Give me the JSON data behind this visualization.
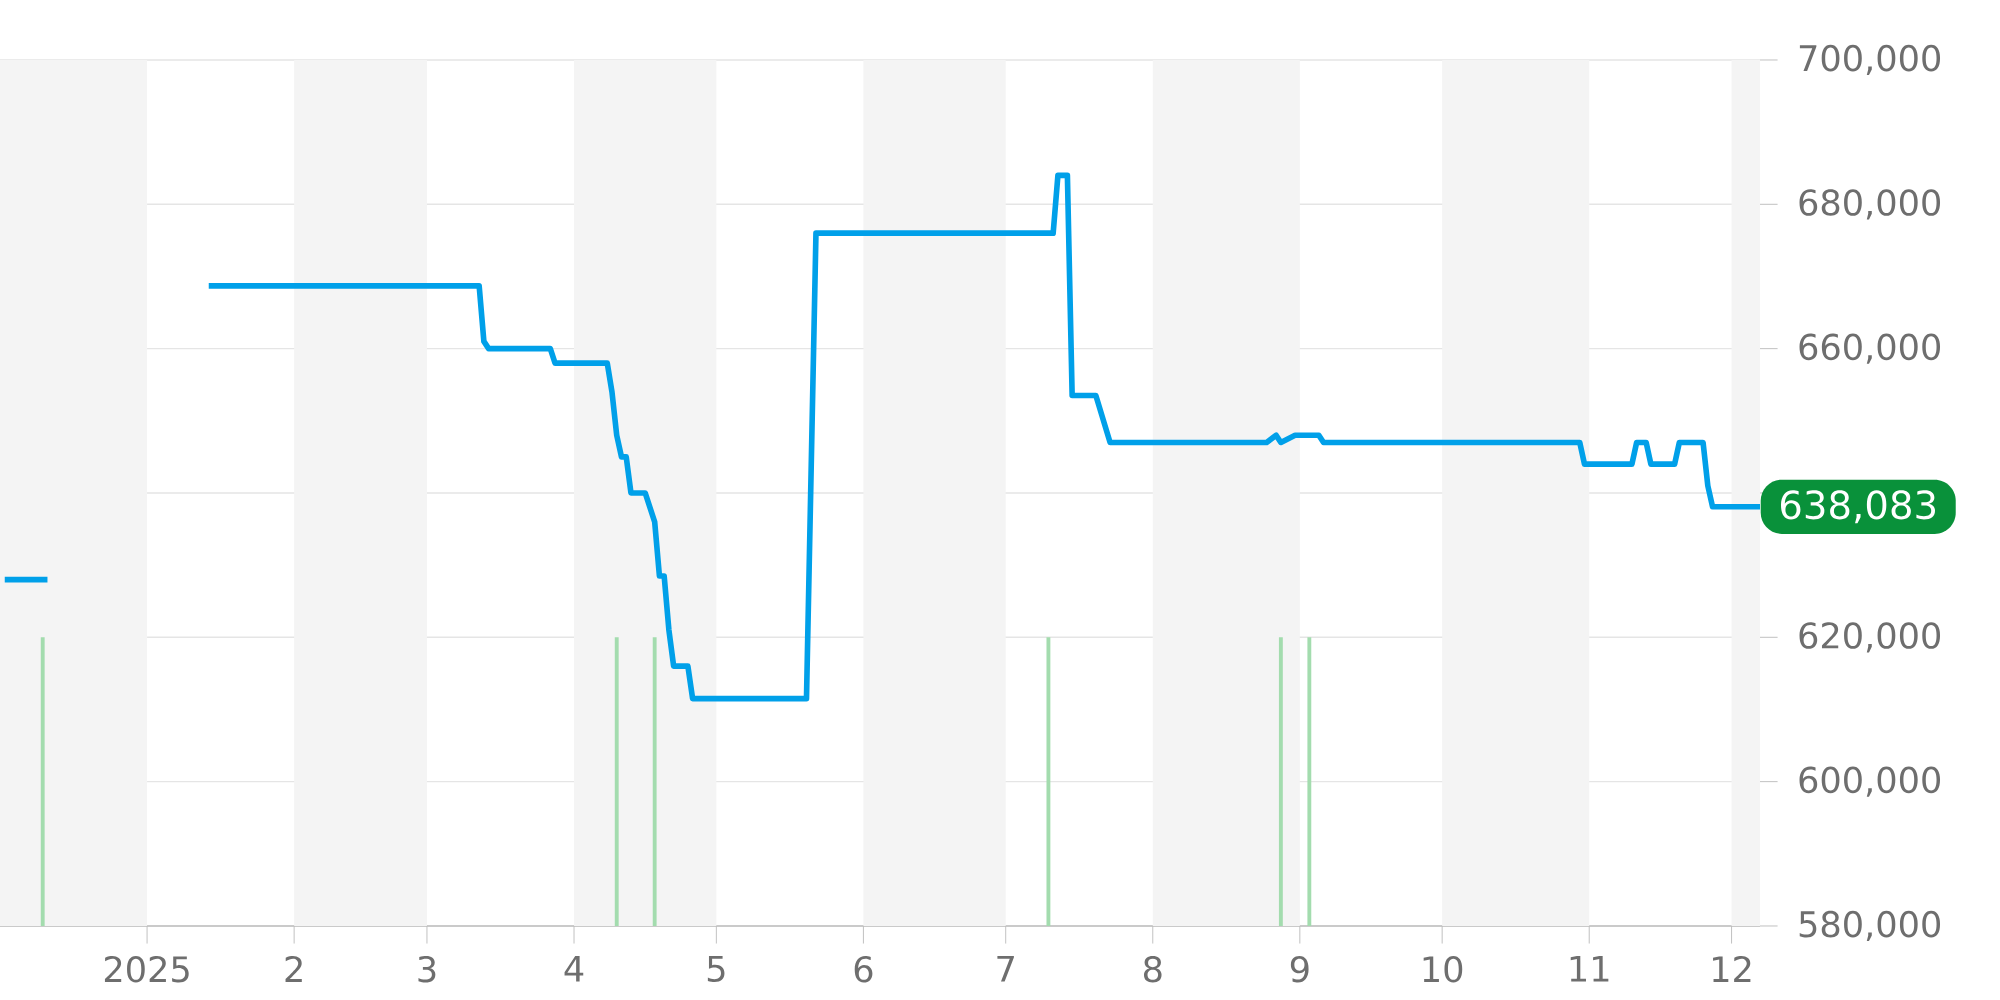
{
  "chart_data": {
    "type": "line",
    "xlim": [
      "2024-12-01",
      "2025-12-07"
    ],
    "xticks": [
      {
        "value": "2025-01-01",
        "label": "2025"
      },
      {
        "value": "2025-02-01",
        "label": "2"
      },
      {
        "value": "2025-03-01",
        "label": "3"
      },
      {
        "value": "2025-04-01",
        "label": "4"
      },
      {
        "value": "2025-05-01",
        "label": "5"
      },
      {
        "value": "2025-06-01",
        "label": "6"
      },
      {
        "value": "2025-07-01",
        "label": "7"
      },
      {
        "value": "2025-08-01",
        "label": "8"
      },
      {
        "value": "2025-09-01",
        "label": "9"
      },
      {
        "value": "2025-10-01",
        "label": "10"
      },
      {
        "value": "2025-11-01",
        "label": "11"
      },
      {
        "value": "2025-12-01",
        "label": "12"
      }
    ],
    "ylim": [
      580000,
      700000
    ],
    "yticks": [
      {
        "value": 580000,
        "label": "580,000"
      },
      {
        "value": 600000,
        "label": "600,000"
      },
      {
        "value": 620000,
        "label": "620,000"
      },
      {
        "value": 640000,
        "label": null
      },
      {
        "value": 660000,
        "label": "660,000"
      },
      {
        "value": 680000,
        "label": "680,000"
      },
      {
        "value": 700000,
        "label": "700,000"
      }
    ],
    "grid": "y",
    "bands": [
      {
        "axis": "x",
        "from": "2024-12-01",
        "to": "2025-01-01",
        "color": "#f4f4f4"
      },
      {
        "axis": "x",
        "from": "2025-02-01",
        "to": "2025-03-01",
        "color": "#f4f4f4"
      },
      {
        "axis": "x",
        "from": "2025-04-01",
        "to": "2025-05-01",
        "color": "#f4f4f4"
      },
      {
        "axis": "x",
        "from": "2025-06-01",
        "to": "2025-07-01",
        "color": "#f4f4f4"
      },
      {
        "axis": "x",
        "from": "2025-08-01",
        "to": "2025-09-01",
        "color": "#f4f4f4"
      },
      {
        "axis": "x",
        "from": "2025-10-01",
        "to": "2025-11-01",
        "color": "#f4f4f4"
      },
      {
        "axis": "x",
        "from": "2025-12-01",
        "to": "2025-12-07",
        "color": "#f4f4f4"
      }
    ],
    "series": [
      {
        "type": "bar",
        "color": "#a3dcae",
        "x": [
          "2024-12-10",
          "2025-04-10",
          "2025-04-18",
          "2025-07-10",
          "2025-08-28",
          "2025-09-03"
        ],
        "values": [
          620000,
          620000,
          620000,
          620000,
          620000,
          620000
        ]
      },
      {
        "color": "#00a0e9",
        "x": [
          "2024-12-02",
          "2024-12-11",
          "2025-01-01",
          "2025-01-14",
          "2025-03-12",
          "2025-03-13",
          "2025-03-14",
          "2025-03-27",
          "2025-03-28",
          "2025-04-08",
          "2025-04-09",
          "2025-04-10",
          "2025-04-11",
          "2025-04-12",
          "2025-04-13",
          "2025-04-16",
          "2025-04-18",
          "2025-04-19",
          "2025-04-20",
          "2025-04-21",
          "2025-04-22",
          "2025-04-25",
          "2025-04-26",
          "2025-05-20",
          "2025-05-22",
          "2025-07-11",
          "2025-07-12",
          "2025-07-14",
          "2025-07-15",
          "2025-07-20",
          "2025-07-23",
          "2025-08-25",
          "2025-08-27",
          "2025-08-28",
          "2025-08-31",
          "2025-09-05",
          "2025-09-06",
          "2025-10-30",
          "2025-10-31",
          "2025-11-10",
          "2025-11-11",
          "2025-11-13",
          "2025-11-14",
          "2025-11-19",
          "2025-11-20",
          "2025-11-25",
          "2025-11-26",
          "2025-11-27",
          "2025-12-07"
        ],
        "values": [
          628000,
          628000,
          null,
          668700,
          668700,
          661000,
          660000,
          660000,
          658000,
          658000,
          654000,
          648000,
          645000,
          645000,
          640000,
          640000,
          636000,
          628500,
          628500,
          621000,
          616000,
          616000,
          611500,
          611500,
          676000,
          676000,
          684000,
          684000,
          653500,
          653500,
          647000,
          647000,
          648000,
          647000,
          648000,
          648000,
          647000,
          647000,
          644000,
          644000,
          647000,
          647000,
          644000,
          644000,
          647000,
          647000,
          641000,
          638083,
          638083
        ]
      }
    ],
    "annotations": [
      {
        "text": "638,083",
        "x": "2025-12-07",
        "y": 638083
      }
    ]
  }
}
